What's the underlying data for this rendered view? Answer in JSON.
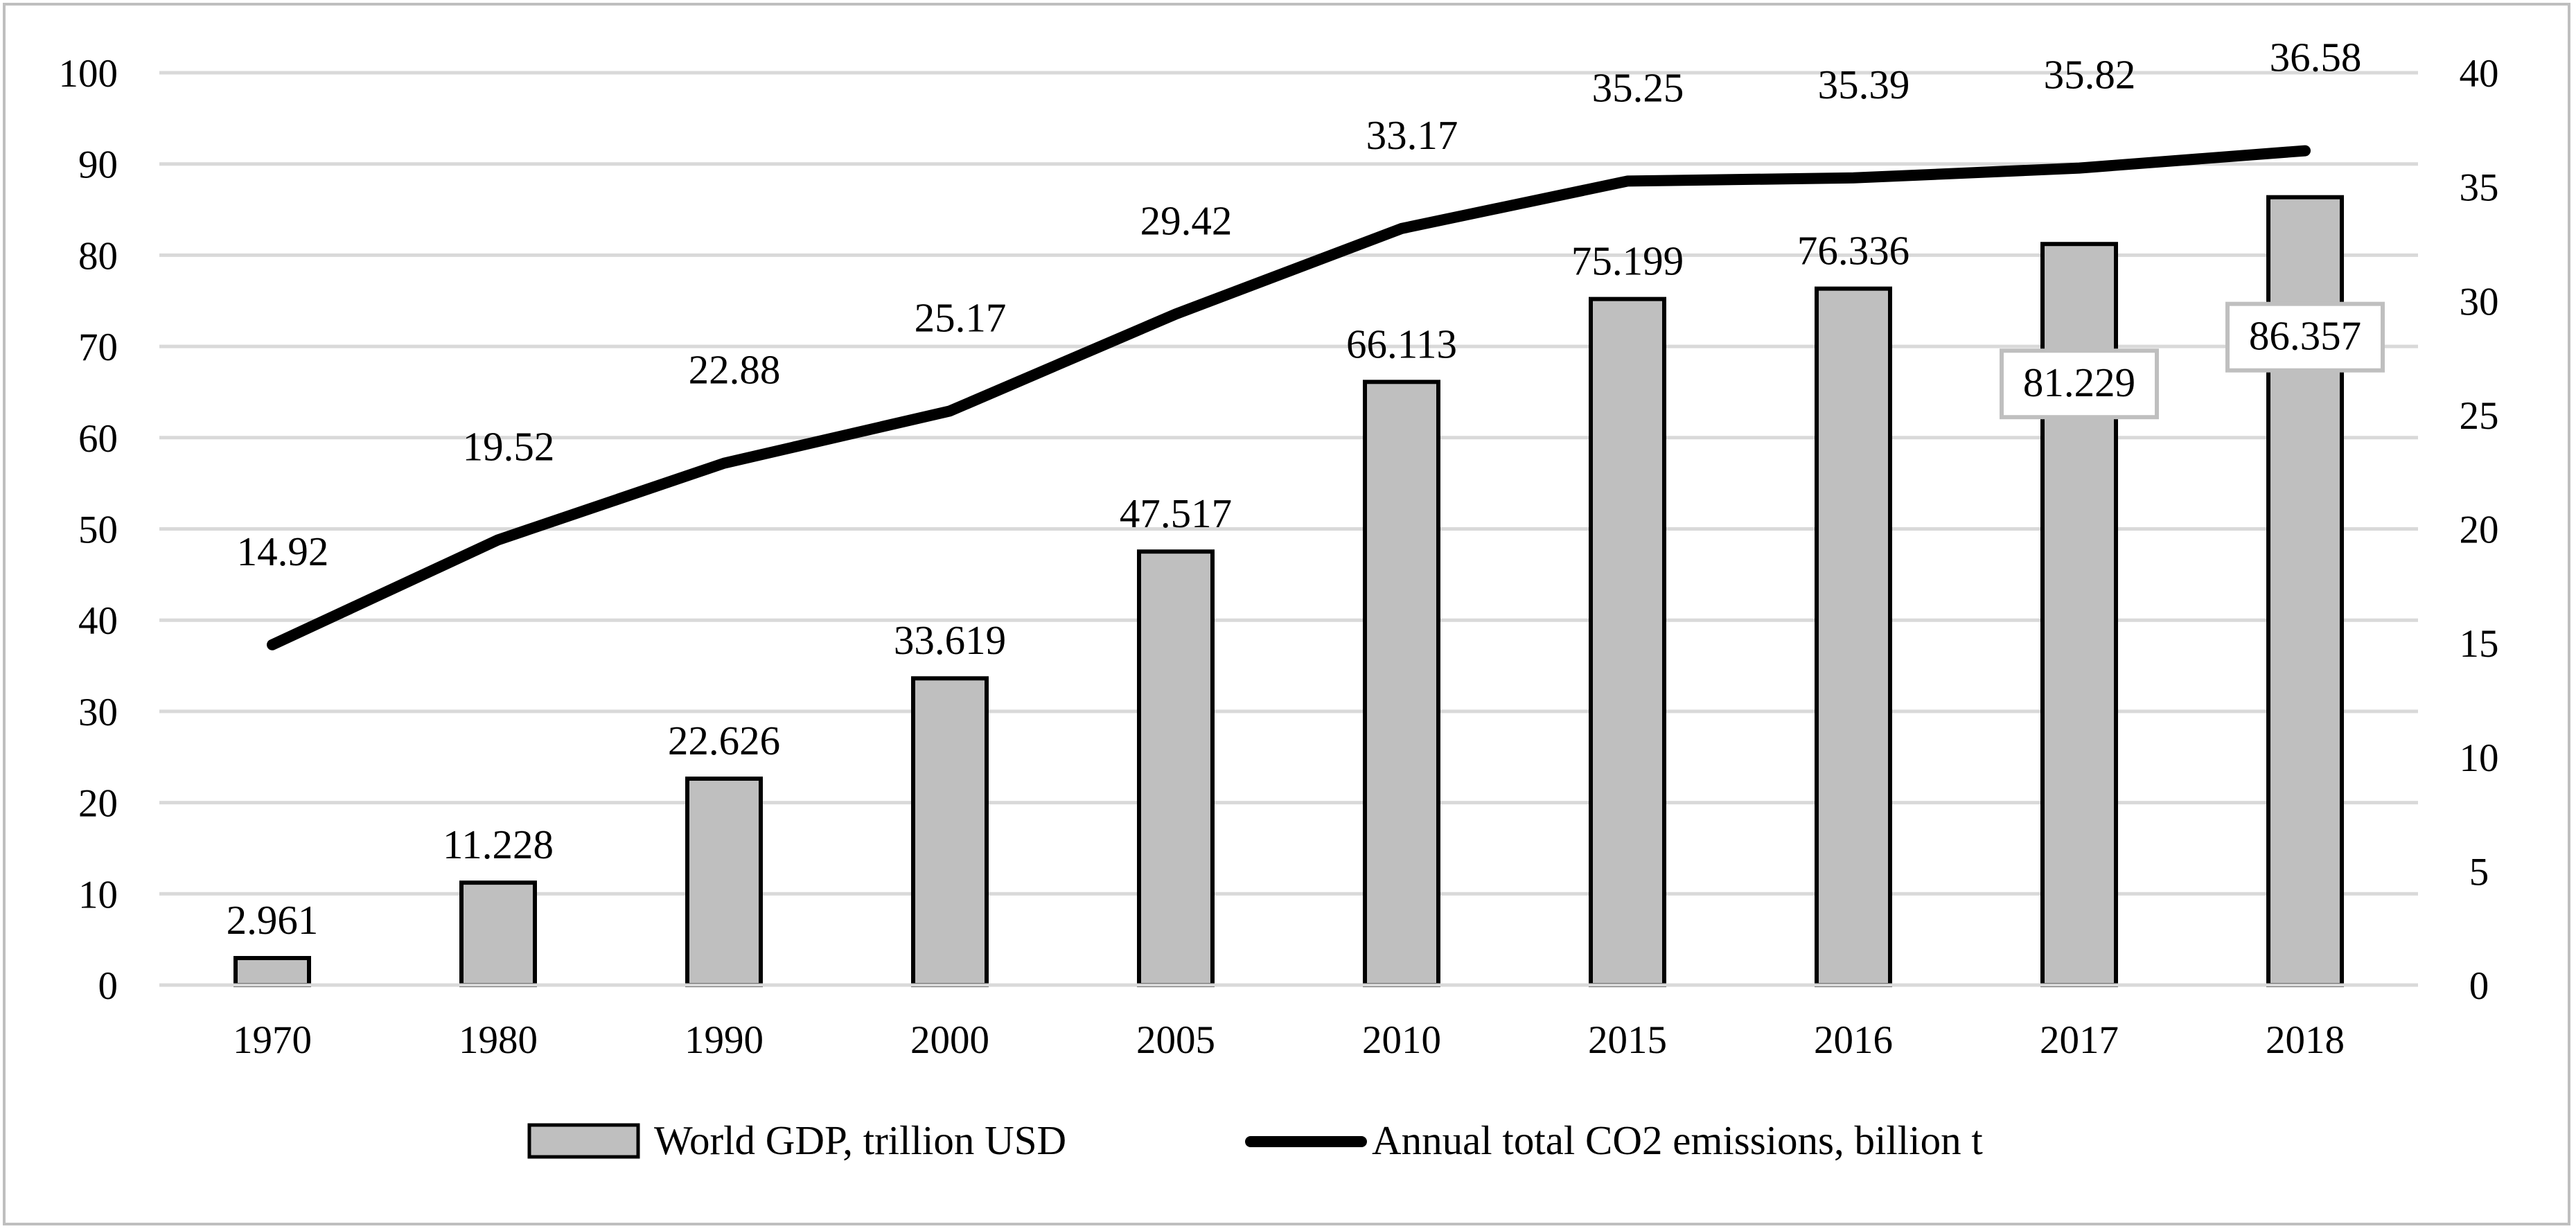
{
  "chart_data": {
    "type": "bar+line",
    "categories": [
      "1970",
      "1980",
      "1990",
      "2000",
      "2005",
      "2010",
      "2015",
      "2016",
      "2017",
      "2018"
    ],
    "series": [
      {
        "name": "World GDP, trillion USD",
        "type": "bar",
        "axis": "left",
        "values": [
          2.961,
          11.228,
          22.626,
          33.619,
          47.517,
          66.113,
          75.199,
          76.336,
          81.229,
          86.357
        ],
        "labels": [
          "2.961",
          "11.228",
          "22.626",
          "33.619",
          "47.517",
          "66.113",
          "75.199",
          "76.336",
          "81.229",
          "86.357"
        ],
        "color": "#bfbfbf"
      },
      {
        "name": "Annual total CO2 emissions, billion t",
        "type": "line",
        "axis": "right",
        "values": [
          14.92,
          19.52,
          22.88,
          25.17,
          29.42,
          33.17,
          35.25,
          35.39,
          35.82,
          36.58
        ],
        "labels": [
          "14.92",
          "19.52",
          "22.88",
          "25.17",
          "29.42",
          "33.17",
          "35.25",
          "35.39",
          "35.82",
          "36.58"
        ],
        "color": "#000000"
      }
    ],
    "y_left": {
      "range": [
        0,
        100
      ],
      "ticks": [
        "0",
        "10",
        "20",
        "30",
        "40",
        "50",
        "60",
        "70",
        "80",
        "90",
        "100"
      ]
    },
    "y_right": {
      "range": [
        0,
        40
      ],
      "ticks": [
        "0",
        "5",
        "10",
        "15",
        "20",
        "25",
        "30",
        "35",
        "40"
      ]
    },
    "grid": true,
    "legend_position": "bottom",
    "boxed_labels": [
      "81.229",
      "86.357"
    ]
  }
}
